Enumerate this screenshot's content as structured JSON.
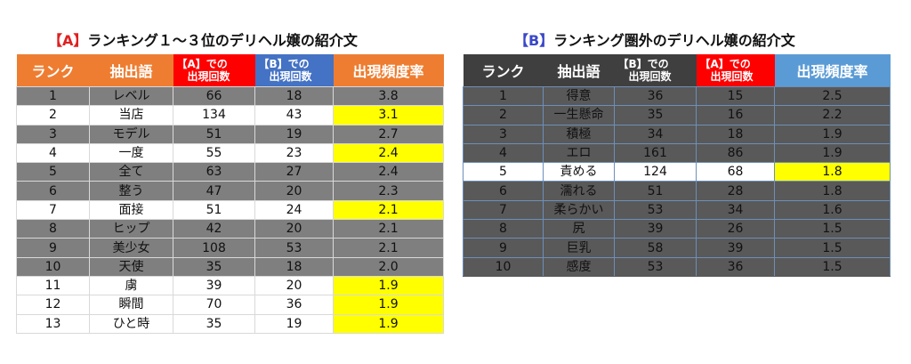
{
  "panel_a": {
    "title_tag": "【A】",
    "title_text": "ランキング１～３位のデリヘル嬢の紹介文",
    "headers": {
      "rank": "ランク",
      "word": "抽出語",
      "a_line1": "【A】での",
      "a_line2": "出現回数",
      "b_line1": "【B】での",
      "b_line2": "出現回数",
      "rate": "出現頻度率"
    },
    "rows": [
      {
        "rank": "1",
        "word": "レベル",
        "a": "66",
        "b": "18",
        "rate": "3.8"
      },
      {
        "rank": "2",
        "word": "当店",
        "a": "134",
        "b": "43",
        "rate": "3.1"
      },
      {
        "rank": "3",
        "word": "モデル",
        "a": "51",
        "b": "19",
        "rate": "2.7"
      },
      {
        "rank": "4",
        "word": "一度",
        "a": "55",
        "b": "23",
        "rate": "2.4"
      },
      {
        "rank": "5",
        "word": "全て",
        "a": "63",
        "b": "27",
        "rate": "2.4"
      },
      {
        "rank": "6",
        "word": "整う",
        "a": "47",
        "b": "20",
        "rate": "2.3"
      },
      {
        "rank": "7",
        "word": "面接",
        "a": "51",
        "b": "24",
        "rate": "2.1"
      },
      {
        "rank": "8",
        "word": "ヒップ",
        "a": "42",
        "b": "20",
        "rate": "2.1"
      },
      {
        "rank": "9",
        "word": "美少女",
        "a": "108",
        "b": "53",
        "rate": "2.1"
      },
      {
        "rank": "10",
        "word": "天使",
        "a": "35",
        "b": "18",
        "rate": "2.0"
      },
      {
        "rank": "11",
        "word": "虜",
        "a": "39",
        "b": "20",
        "rate": "1.9"
      },
      {
        "rank": "12",
        "word": "瞬間",
        "a": "70",
        "b": "36",
        "rate": "1.9"
      },
      {
        "rank": "13",
        "word": "ひと時",
        "a": "35",
        "b": "19",
        "rate": "1.9"
      }
    ]
  },
  "panel_b": {
    "title_tag": "【B】",
    "title_text": "ランキング圏外のデリヘル嬢の紹介文",
    "headers": {
      "rank": "ランク",
      "word": "抽出語",
      "b_line1": "【B】での",
      "b_line2": "出現回数",
      "a_line1": "【A】での",
      "a_line2": "出現回数",
      "rate": "出現頻度率"
    },
    "rows": [
      {
        "rank": "1",
        "word": "得意",
        "b": "36",
        "a": "15",
        "rate": "2.5"
      },
      {
        "rank": "2",
        "word": "一生懸命",
        "b": "35",
        "a": "16",
        "rate": "2.2"
      },
      {
        "rank": "3",
        "word": "積極",
        "b": "34",
        "a": "18",
        "rate": "1.9"
      },
      {
        "rank": "4",
        "word": "エロ",
        "b": "161",
        "a": "86",
        "rate": "1.9"
      },
      {
        "rank": "5",
        "word": "責める",
        "b": "124",
        "a": "68",
        "rate": "1.8"
      },
      {
        "rank": "6",
        "word": "濡れる",
        "b": "51",
        "a": "28",
        "rate": "1.8"
      },
      {
        "rank": "7",
        "word": "柔らかい",
        "b": "53",
        "a": "34",
        "rate": "1.6"
      },
      {
        "rank": "8",
        "word": "尻",
        "b": "39",
        "a": "26",
        "rate": "1.5"
      },
      {
        "rank": "9",
        "word": "巨乳",
        "b": "58",
        "a": "39",
        "rate": "1.5"
      },
      {
        "rank": "10",
        "word": "感度",
        "b": "53",
        "a": "36",
        "rate": "1.5"
      }
    ]
  }
}
